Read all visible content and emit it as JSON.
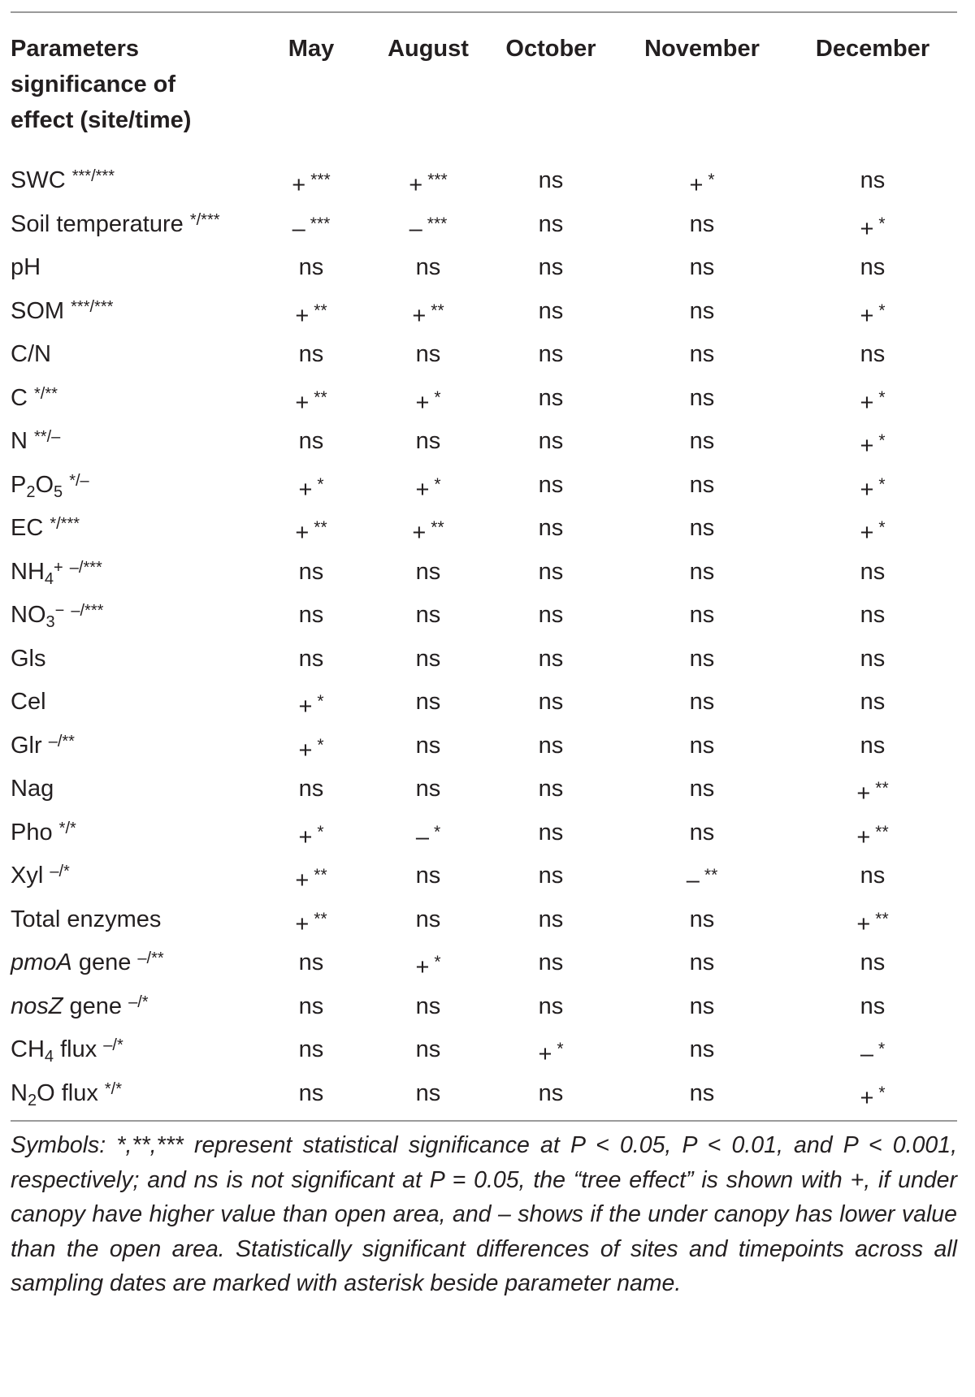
{
  "table": {
    "header": {
      "parameter": [
        "Parameters",
        "significance of",
        "effect (site/time)"
      ],
      "months": [
        "May",
        "August",
        "October",
        "November",
        "December"
      ]
    },
    "rows": [
      {
        "param": [
          "SWC ",
          {
            "sup": "***/***"
          }
        ],
        "cells": [
          {
            "sign": "+",
            "stars": "***"
          },
          {
            "sign": "+",
            "stars": "***"
          },
          "ns",
          {
            "sign": "+",
            "stars": "*"
          },
          "ns"
        ]
      },
      {
        "param": [
          "Soil temperature ",
          {
            "sup": "*/***"
          }
        ],
        "cells": [
          {
            "sign": "–",
            "stars": "***"
          },
          {
            "sign": "–",
            "stars": "***"
          },
          "ns",
          "ns",
          {
            "sign": "+",
            "stars": "*"
          }
        ]
      },
      {
        "param": [
          "pH"
        ],
        "cells": [
          "ns",
          "ns",
          "ns",
          "ns",
          "ns"
        ]
      },
      {
        "param": [
          "SOM ",
          {
            "sup": "***/***"
          }
        ],
        "cells": [
          {
            "sign": "+",
            "stars": "**"
          },
          {
            "sign": "+",
            "stars": "**"
          },
          "ns",
          "ns",
          {
            "sign": "+",
            "stars": "*"
          }
        ]
      },
      {
        "param": [
          "C/N"
        ],
        "cells": [
          "ns",
          "ns",
          "ns",
          "ns",
          "ns"
        ]
      },
      {
        "param": [
          "C ",
          {
            "sup": "*/**"
          }
        ],
        "cells": [
          {
            "sign": "+",
            "stars": "**"
          },
          {
            "sign": "+",
            "stars": "*"
          },
          "ns",
          "ns",
          {
            "sign": "+",
            "stars": "*"
          }
        ]
      },
      {
        "param": [
          "N ",
          {
            "sup": "**/–"
          }
        ],
        "cells": [
          "ns",
          "ns",
          "ns",
          "ns",
          {
            "sign": "+",
            "stars": "*"
          }
        ]
      },
      {
        "param": [
          "P",
          {
            "sub": "2"
          },
          "O",
          {
            "sub": "5"
          },
          " ",
          {
            "sup": "*/–"
          }
        ],
        "cells": [
          {
            "sign": "+",
            "stars": "*"
          },
          {
            "sign": "+",
            "stars": "*"
          },
          "ns",
          "ns",
          {
            "sign": "+",
            "stars": "*"
          }
        ]
      },
      {
        "param": [
          "EC ",
          {
            "sup": "*/***"
          }
        ],
        "cells": [
          {
            "sign": "+",
            "stars": "**"
          },
          {
            "sign": "+",
            "stars": "**"
          },
          "ns",
          "ns",
          {
            "sign": "+",
            "stars": "*"
          }
        ]
      },
      {
        "param": [
          "NH",
          {
            "sub": "4"
          },
          {
            "sup": "+"
          },
          " ",
          {
            "sup": "–/***"
          }
        ],
        "cells": [
          "ns",
          "ns",
          "ns",
          "ns",
          "ns"
        ]
      },
      {
        "param": [
          "NO",
          {
            "sub": "3"
          },
          {
            "sup": "−"
          },
          " ",
          {
            "sup": "–/***"
          }
        ],
        "cells": [
          "ns",
          "ns",
          "ns",
          "ns",
          "ns"
        ]
      },
      {
        "param": [
          "Gls"
        ],
        "cells": [
          "ns",
          "ns",
          "ns",
          "ns",
          "ns"
        ]
      },
      {
        "param": [
          "Cel"
        ],
        "cells": [
          {
            "sign": "+",
            "stars": "*"
          },
          "ns",
          "ns",
          "ns",
          "ns"
        ]
      },
      {
        "param": [
          "Glr ",
          {
            "sup": "–/**"
          }
        ],
        "cells": [
          {
            "sign": "+",
            "stars": "*"
          },
          "ns",
          "ns",
          "ns",
          "ns"
        ]
      },
      {
        "param": [
          "Nag"
        ],
        "cells": [
          "ns",
          "ns",
          "ns",
          "ns",
          {
            "sign": "+",
            "stars": "**"
          }
        ]
      },
      {
        "param": [
          "Pho ",
          {
            "sup": "*/*"
          }
        ],
        "cells": [
          {
            "sign": "+",
            "stars": "*"
          },
          {
            "sign": "–",
            "stars": "*"
          },
          "ns",
          "ns",
          {
            "sign": "+",
            "stars": "**"
          }
        ]
      },
      {
        "param": [
          "Xyl ",
          {
            "sup": "–/*"
          }
        ],
        "cells": [
          {
            "sign": "+",
            "stars": "**"
          },
          "ns",
          "ns",
          {
            "sign": "–",
            "stars": "**"
          },
          "ns"
        ]
      },
      {
        "param": [
          "Total enzymes"
        ],
        "cells": [
          {
            "sign": "+",
            "stars": "**"
          },
          "ns",
          "ns",
          "ns",
          {
            "sign": "+",
            "stars": "**"
          }
        ]
      },
      {
        "param": [
          {
            "i": "pmoA"
          },
          " gene ",
          {
            "sup": "–/**"
          }
        ],
        "cells": [
          "ns",
          {
            "sign": "+",
            "stars": "*"
          },
          "ns",
          "ns",
          "ns"
        ]
      },
      {
        "param": [
          {
            "i": "nosZ"
          },
          " gene ",
          {
            "sup": "–/*"
          }
        ],
        "cells": [
          "ns",
          "ns",
          "ns",
          "ns",
          "ns"
        ]
      },
      {
        "param": [
          "CH",
          {
            "sub": "4"
          },
          " flux ",
          {
            "sup": "–/*"
          }
        ],
        "cells": [
          "ns",
          "ns",
          {
            "sign": "+",
            "stars": "*"
          },
          "ns",
          {
            "sign": "–",
            "stars": "*"
          }
        ]
      },
      {
        "param": [
          "N",
          {
            "sub": "2"
          },
          "O flux ",
          {
            "sup": "*/*"
          }
        ],
        "cells": [
          "ns",
          "ns",
          "ns",
          "ns",
          {
            "sign": "+",
            "stars": "*"
          }
        ]
      }
    ],
    "footnote": "Symbols: *,**,*** represent statistical significance at P < 0.05, P < 0.01, and P < 0.001, respectively; and ns is not significant at P = 0.05, the “tree effect” is shown with +, if under canopy have higher value than open area, and – shows if the under canopy has lower value than the open area. Statistically significant differences of sites and timepoints across all sampling dates are marked with asterisk beside parameter name."
  }
}
